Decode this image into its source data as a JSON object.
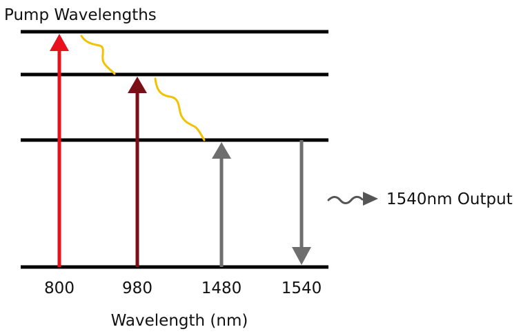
{
  "title": "Pump Wavelengths",
  "xlabel": "Wavelength (nm)",
  "output_label": "1540nm Output",
  "wavelengths": [
    "800",
    "980",
    "1480",
    "1540"
  ],
  "levels": 4,
  "transitions": [
    {
      "label": "800",
      "from_level": 0,
      "to_level": 3,
      "direction": "up",
      "color": "#e8121f"
    },
    {
      "label": "980",
      "from_level": 0,
      "to_level": 2,
      "direction": "up",
      "color": "#7a0f17"
    },
    {
      "label": "1480",
      "from_level": 0,
      "to_level": 1,
      "direction": "up",
      "color": "#6e6e6e"
    },
    {
      "label": "1540",
      "from_level": 1,
      "to_level": 0,
      "direction": "down",
      "color": "#6e6e6e"
    }
  ],
  "relaxations": [
    {
      "from_level": 3,
      "to_level": 2,
      "color": "#f2c200"
    },
    {
      "from_level": 2,
      "to_level": 1,
      "color": "#f2c200"
    }
  ],
  "colors": {
    "level_line": "#000000",
    "output_arrow": "#555555"
  }
}
